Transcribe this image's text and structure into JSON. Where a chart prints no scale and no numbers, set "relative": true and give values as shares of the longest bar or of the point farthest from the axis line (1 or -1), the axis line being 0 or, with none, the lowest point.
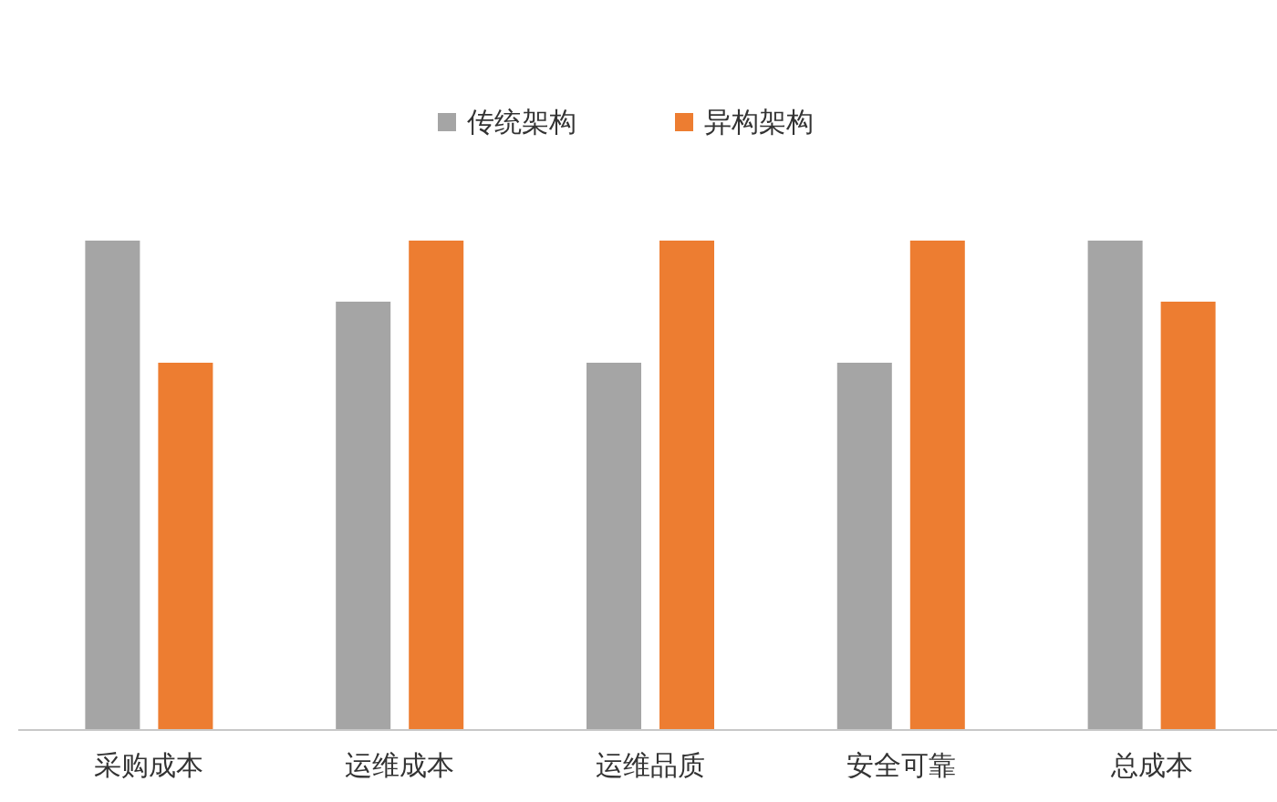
{
  "chart_data": {
    "type": "bar",
    "relative": true,
    "legend": "top",
    "categories": [
      "采购成本",
      "运维成本",
      "运维品质",
      "安全可靠",
      "总成本"
    ],
    "series": [
      {
        "name": "传统架构",
        "color": "#a5a5a5",
        "values": [
          1,
          0.875,
          0.75,
          0.75,
          1
        ]
      },
      {
        "name": "异构架构",
        "color": "#ed7d31",
        "values": [
          0.75,
          1,
          1,
          1,
          0.875
        ]
      }
    ]
  }
}
